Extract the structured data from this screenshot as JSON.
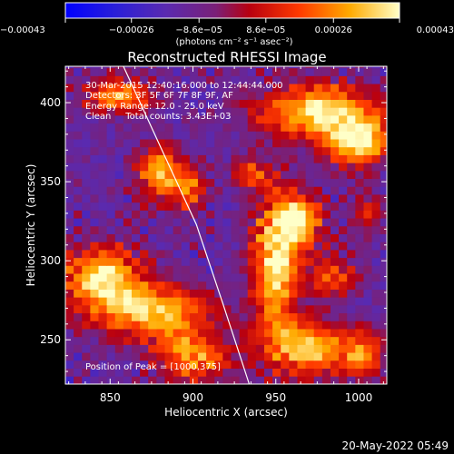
{
  "chart_data": {
    "type": "heatmap",
    "title": "Reconstructed RHESSI Image",
    "xlabel": "Heliocentric X (arcsec)",
    "ylabel": "Heliocentric Y (arcsec)",
    "xlim": [
      823,
      1017
    ],
    "ylim": [
      222,
      423
    ],
    "x_ticks": [
      850,
      900,
      950,
      1000
    ],
    "y_ticks": [
      250,
      300,
      350,
      400
    ],
    "colorbar": {
      "range": [
        -0.00043,
        0.00043
      ],
      "ticks": [
        {
          "value": -0.00043,
          "label": "−0.00043"
        },
        {
          "value": -0.00026,
          "label": "−0.00026"
        },
        {
          "value": -8.6e-05,
          "label": "−8.6e−05"
        },
        {
          "value": 8.6e-05,
          "label": "8.6e−05"
        },
        {
          "value": 0.00026,
          "label": "0.00026"
        },
        {
          "value": 0.00043,
          "label": "0.00043"
        }
      ],
      "unit_label": "(photons cm⁻² s⁻¹ asec⁻²)"
    },
    "annotations": {
      "time_range": "30-Mar-2015 12:40:16.000 to 12:44:44.000",
      "detectors": "Detectors: 3F 5F 6F 7F 8F 9F, AF",
      "energy_range": "Energy Range: 12.0 - 25.0 keV",
      "method_counts": "Clean     Total counts: 3.43E+03",
      "peak": "Position of Peak = [1000,375]"
    },
    "limb_curve": [
      [
        858,
        423
      ],
      [
        880,
        373
      ],
      [
        902,
        323
      ],
      [
        918,
        273
      ],
      [
        934,
        222
      ]
    ],
    "emission_sources": [
      {
        "x": 975,
        "y": 395,
        "sx": 25,
        "sy": 12,
        "a": 0.95
      },
      {
        "x": 1000,
        "y": 375,
        "sx": 13,
        "sy": 11,
        "a": 1.0
      },
      {
        "x": 880,
        "y": 355,
        "sx": 9,
        "sy": 12,
        "a": 0.85
      },
      {
        "x": 898,
        "y": 345,
        "sx": 7,
        "sy": 10,
        "a": 0.6
      },
      {
        "x": 855,
        "y": 405,
        "sx": 14,
        "sy": 8,
        "a": 0.8
      },
      {
        "x": 845,
        "y": 290,
        "sx": 17,
        "sy": 14,
        "a": 0.95
      },
      {
        "x": 875,
        "y": 268,
        "sx": 24,
        "sy": 12,
        "a": 0.85
      },
      {
        "x": 900,
        "y": 240,
        "sx": 15,
        "sy": 12,
        "a": 0.75
      },
      {
        "x": 950,
        "y": 300,
        "sx": 10,
        "sy": 30,
        "a": 1.0
      },
      {
        "x": 965,
        "y": 325,
        "sx": 10,
        "sy": 12,
        "a": 0.8
      },
      {
        "x": 985,
        "y": 290,
        "sx": 9,
        "sy": 9,
        "a": 0.6
      },
      {
        "x": 970,
        "y": 245,
        "sx": 20,
        "sy": 12,
        "a": 0.85
      },
      {
        "x": 1003,
        "y": 240,
        "sx": 8,
        "sy": 10,
        "a": 0.6
      },
      {
        "x": 935,
        "y": 355,
        "sx": 7,
        "sy": 7,
        "a": 0.55
      },
      {
        "x": 1005,
        "y": 330,
        "sx": 7,
        "sy": 8,
        "a": 0.5
      }
    ]
  },
  "footer": {
    "timestamp": "20-May-2022 05:49"
  }
}
